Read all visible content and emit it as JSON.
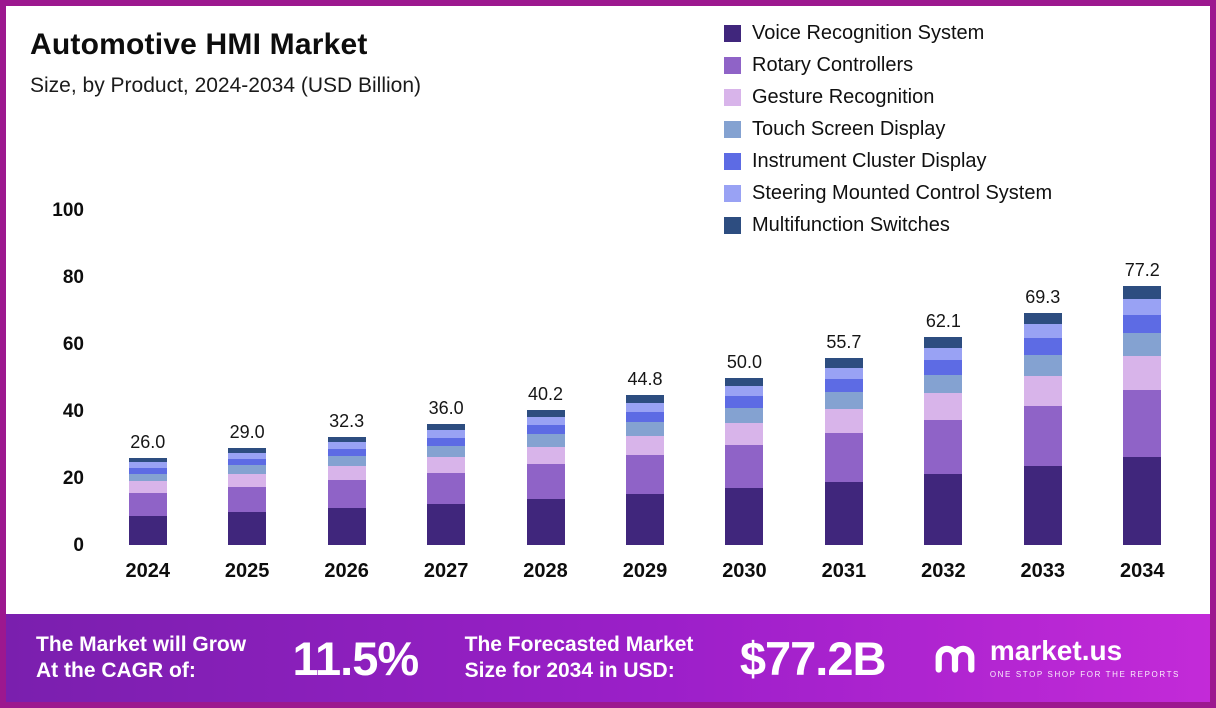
{
  "header": {
    "title": "Automotive HMI Market",
    "subtitle": "Size, by Product, 2024-2034 (USD Billion)"
  },
  "chart_data": {
    "type": "bar",
    "stacked": true,
    "title": "Automotive HMI Market",
    "subtitle": "Size, by Product, 2024-2034 (USD Billion)",
    "xlabel": "",
    "ylabel": "USD Billion",
    "ylim": [
      0,
      100
    ],
    "yticks": [
      0,
      20,
      40,
      60,
      80,
      100
    ],
    "grid": false,
    "legend_position": "top-right",
    "categories": [
      "2024",
      "2025",
      "2026",
      "2027",
      "2028",
      "2029",
      "2030",
      "2031",
      "2032",
      "2033",
      "2034"
    ],
    "totals": [
      26.0,
      29.0,
      32.3,
      36.0,
      40.2,
      44.8,
      50.0,
      55.7,
      62.1,
      69.3,
      77.2
    ],
    "series": [
      {
        "name": "Voice Recognition System",
        "color": "#40267c",
        "values": [
          8.8,
          9.9,
          11.0,
          12.2,
          13.7,
          15.2,
          17.0,
          18.9,
          21.1,
          23.6,
          26.2
        ]
      },
      {
        "name": "Rotary Controllers",
        "color": "#8f63c7",
        "values": [
          6.8,
          7.5,
          8.4,
          9.4,
          10.5,
          11.6,
          13.0,
          14.5,
          16.1,
          18.0,
          20.1
        ]
      },
      {
        "name": "Gesture Recognition",
        "color": "#d8b4ea",
        "values": [
          3.4,
          3.8,
          4.2,
          4.7,
          5.2,
          5.8,
          6.5,
          7.2,
          8.1,
          9.0,
          10.0
        ]
      },
      {
        "name": "Touch Screen Display",
        "color": "#84a2d1",
        "values": [
          2.3,
          2.6,
          2.9,
          3.2,
          3.6,
          4.0,
          4.5,
          5.0,
          5.6,
          6.2,
          7.0
        ]
      },
      {
        "name": "Instrument Cluster Display",
        "color": "#5d6be4",
        "values": [
          1.8,
          2.0,
          2.3,
          2.5,
          2.8,
          3.1,
          3.5,
          3.9,
          4.3,
          4.9,
          5.4
        ]
      },
      {
        "name": "Steering Mounted Control System",
        "color": "#99a2f4",
        "values": [
          1.6,
          1.7,
          1.9,
          2.2,
          2.4,
          2.7,
          3.0,
          3.3,
          3.7,
          4.2,
          4.6
        ]
      },
      {
        "name": "Multifunction Switches",
        "color": "#2d4d80",
        "values": [
          1.3,
          1.5,
          1.6,
          1.8,
          2.0,
          2.4,
          2.5,
          2.9,
          3.2,
          3.4,
          3.9
        ]
      }
    ]
  },
  "footer": {
    "cagr_label_line1": "The Market will Grow",
    "cagr_label_line2": "At the CAGR of:",
    "cagr_value": "11.5%",
    "forecast_label_line1": "The Forecasted Market",
    "forecast_label_line2": "Size for 2034 in USD:",
    "forecast_value": "$77.2B",
    "brand": "market.us",
    "brand_tagline": "ONE STOP SHOP FOR THE REPORTS"
  },
  "colors": {
    "frame": "#9c188f",
    "band_gradient": [
      "#7a1fae",
      "#9c1fc9",
      "#c32ad8"
    ],
    "text": "#111111",
    "footer_text": "#ffffff"
  }
}
